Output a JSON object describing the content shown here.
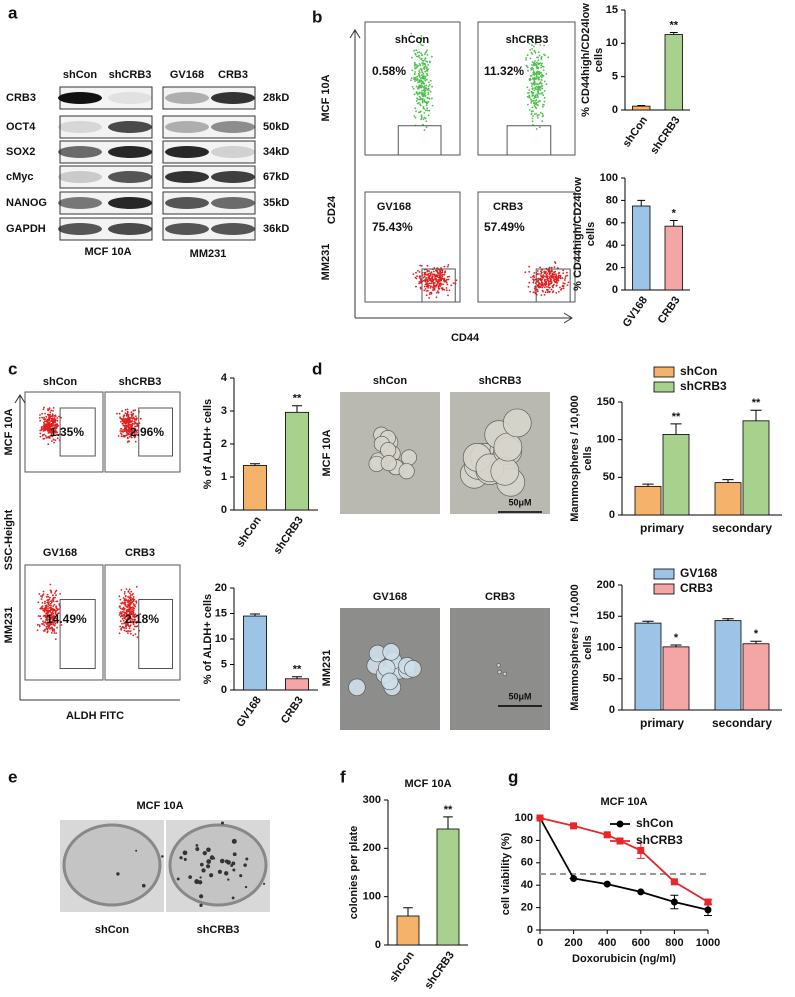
{
  "panel_letters": [
    "a",
    "b",
    "c",
    "d",
    "e",
    "f",
    "g"
  ],
  "blot": {
    "columns": [
      "shCon",
      "shCRB3",
      "GV168",
      "CRB3"
    ],
    "rows": [
      "CRB3",
      "OCT4",
      "SOX2",
      "cMyc",
      "NANOG",
      "GAPDH"
    ],
    "sizes": [
      "28kD",
      "50kD",
      "34kD",
      "67kD",
      "35kD",
      "36kD"
    ],
    "groups": [
      "MCF 10A",
      "MM231"
    ]
  },
  "flow_b": {
    "y_axis": "CD24",
    "x_axis": "CD44",
    "rows": [
      "MCF 10A",
      "MM231"
    ],
    "plots": [
      {
        "sample": "shCon",
        "percent": "0.58%"
      },
      {
        "sample": "shCRB3",
        "percent": "11.32%"
      },
      {
        "sample": "GV168",
        "percent": "75.43%"
      },
      {
        "sample": "CRB3",
        "percent": "57.49%"
      }
    ]
  },
  "flow_c": {
    "y_axis": "SSC-Height",
    "x_axis": "ALDH FITC",
    "rows": [
      "MCF 10A",
      "MM231"
    ],
    "plots": [
      {
        "sample": "shCon",
        "percent": "1.35%"
      },
      {
        "sample": "shCRB3",
        "percent": "2.96%"
      },
      {
        "sample": "GV168",
        "percent": "14.49%"
      },
      {
        "sample": "CRB3",
        "percent": "2.18%"
      }
    ]
  },
  "spheres_d": {
    "rows": [
      "MCF 10A",
      "MM231"
    ],
    "images": [
      "shCon",
      "shCRB3",
      "GV168",
      "CRB3"
    ],
    "scale_bar": "50μM"
  },
  "colony_e": {
    "title": "MCF 10A",
    "images": [
      "shCon",
      "shCRB3"
    ]
  },
  "chart_data": [
    {
      "type": "bar",
      "y_label": [
        "% CD44high/CD24low",
        "cells"
      ],
      "categories": [
        "shCon",
        "shCRB3"
      ],
      "values": [
        0.58,
        11.32
      ],
      "errors": [
        0.1,
        0.3
      ],
      "sig_labels": [
        null,
        "**"
      ],
      "colors": [
        "#f4b26b",
        "#a9d18e"
      ],
      "ylim": [
        0,
        15
      ],
      "yticks": [
        0,
        5,
        10,
        15
      ]
    },
    {
      "type": "bar",
      "y_label": [
        "% CD44high/CD24low",
        "cells"
      ],
      "categories": [
        "GV168",
        "CRB3"
      ],
      "values": [
        75,
        57
      ],
      "errors": [
        5,
        5
      ],
      "sig_labels": [
        null,
        "*"
      ],
      "colors": [
        "#9dc3e6",
        "#f4a6a6"
      ],
      "ylim": [
        0,
        100
      ],
      "yticks": [
        0,
        20,
        40,
        60,
        80,
        100
      ]
    },
    {
      "type": "bar",
      "y_label": [
        "% of ALDH+ cells"
      ],
      "categories": [
        "shCon",
        "shCRB3"
      ],
      "values": [
        1.35,
        2.96
      ],
      "errors": [
        0.05,
        0.2
      ],
      "sig_labels": [
        null,
        "**"
      ],
      "colors": [
        "#f4b26b",
        "#a9d18e"
      ],
      "ylim": [
        0,
        4
      ],
      "yticks": [
        0,
        1,
        2,
        3,
        4
      ]
    },
    {
      "type": "bar",
      "y_label": [
        "% of ALDH+ cells"
      ],
      "categories": [
        "GV168",
        "CRB3"
      ],
      "values": [
        14.5,
        2.2
      ],
      "errors": [
        0.4,
        0.4
      ],
      "sig_labels": [
        null,
        "**"
      ],
      "colors": [
        "#9dc3e6",
        "#f4a6a6"
      ],
      "ylim": [
        0,
        20
      ],
      "yticks": [
        0,
        5,
        10,
        15,
        20
      ]
    },
    {
      "type": "bar",
      "y_label": [
        "Mammospheres / 10,000",
        "cells"
      ],
      "categories": [
        "primary",
        "secondary"
      ],
      "series": [
        {
          "name": "shCon",
          "color": "#f4b26b",
          "values": [
            38,
            43
          ],
          "errors": [
            3,
            4
          ],
          "sig_labels": [
            null,
            null
          ]
        },
        {
          "name": "shCRB3",
          "color": "#a9d18e",
          "values": [
            107,
            125
          ],
          "errors": [
            14,
            14
          ],
          "sig_labels": [
            "**",
            "**"
          ]
        }
      ],
      "ylim": [
        0,
        150
      ],
      "yticks": [
        0,
        50,
        100,
        150
      ]
    },
    {
      "type": "bar",
      "y_label": [
        "Mammospheres / 10,000",
        "cells"
      ],
      "categories": [
        "primary",
        "secondary"
      ],
      "series": [
        {
          "name": "GV168",
          "color": "#9dc3e6",
          "values": [
            139,
            143
          ],
          "errors": [
            3,
            3
          ],
          "sig_labels": [
            null,
            null
          ]
        },
        {
          "name": "CRB3",
          "color": "#f4a6a6",
          "values": [
            101,
            106
          ],
          "errors": [
            3,
            4
          ],
          "sig_labels": [
            "*",
            "*"
          ]
        }
      ],
      "ylim": [
        0,
        200
      ],
      "yticks": [
        0,
        50,
        100,
        150,
        200
      ]
    },
    {
      "type": "bar",
      "title": "MCF 10A",
      "y_label": [
        "colonies per plate"
      ],
      "categories": [
        "shCon",
        "shCRB3"
      ],
      "values": [
        60,
        240
      ],
      "errors": [
        17,
        25
      ],
      "sig_labels": [
        null,
        "**"
      ],
      "colors": [
        "#f4b26b",
        "#a9d18e"
      ],
      "ylim": [
        0,
        300
      ],
      "yticks": [
        0,
        100,
        200,
        300
      ]
    },
    {
      "type": "line",
      "title": "MCF 10A",
      "x_label": "Doxorubicin (ng/ml)",
      "y_label": [
        "cell viability (%)"
      ],
      "x": [
        0,
        200,
        400,
        600,
        800,
        1000
      ],
      "series": [
        {
          "name": "shCon",
          "color": "#000000",
          "marker": "circle",
          "values": [
            100,
            46,
            41,
            34,
            25,
            18
          ],
          "errors": [
            0,
            0,
            0,
            0,
            6,
            5
          ]
        },
        {
          "name": "shCRB3",
          "color": "#e8262a",
          "marker": "square",
          "values": [
            100,
            93,
            85,
            71,
            43,
            25
          ],
          "errors": [
            0,
            0,
            0,
            7,
            0,
            2
          ]
        }
      ],
      "reference_line": 50,
      "xlim": [
        0,
        1000
      ],
      "xticks": [
        0,
        200,
        400,
        600,
        800,
        1000
      ],
      "ylim": [
        0,
        100
      ],
      "yticks": [
        0,
        20,
        40,
        60,
        80,
        100
      ]
    }
  ]
}
